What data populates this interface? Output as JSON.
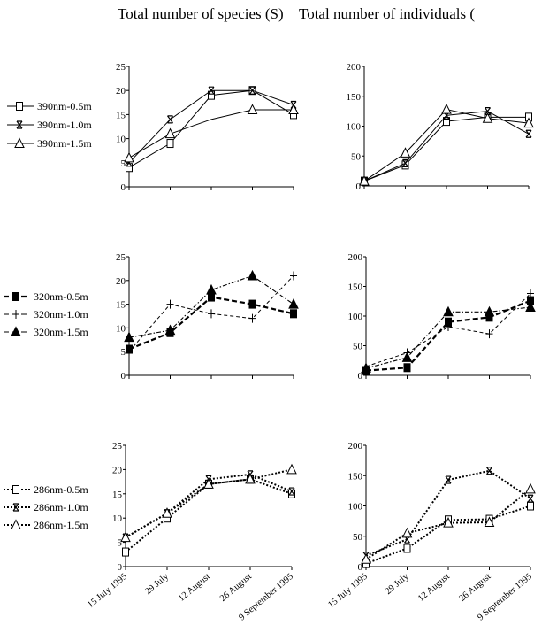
{
  "column_titles": {
    "left": "Total number of species (S)",
    "right": "Total number of individuals ("
  },
  "chart_data": [
    {
      "id": "species-390",
      "type": "line",
      "title": "Total number of species (S)",
      "categories": [
        "15 July 1995",
        "29 July",
        "12 August",
        "26 August",
        "9 September 1995"
      ],
      "ylim": [
        0,
        25
      ],
      "yticks": [
        "0",
        "5",
        "10",
        "15",
        "20",
        "25"
      ],
      "legend": "left",
      "show_xlabels": false,
      "series": [
        {
          "name": "390nm-0.5m",
          "marker": "square",
          "dash": "solid",
          "values": [
            4,
            9,
            19,
            20,
            15
          ]
        },
        {
          "name": "390nm-1.0m",
          "marker": "x",
          "dash": "solid",
          "values": [
            5,
            14,
            20,
            20,
            17
          ]
        },
        {
          "name": "390nm-1.5m",
          "marker": "triangle",
          "dash": "solid",
          "values": [
            6,
            11,
            14,
            16,
            16
          ],
          "skip_marker": [
            2
          ]
        }
      ]
    },
    {
      "id": "individuals-390",
      "type": "line",
      "categories": [
        "15 July 1995",
        "29 July",
        "12 August",
        "26 August",
        "9 September 1995"
      ],
      "ylim": [
        0,
        200
      ],
      "yticks": [
        "0",
        "50",
        "100",
        "150",
        "200"
      ],
      "show_xlabels": false,
      "series": [
        {
          "name": "390nm-0.5m",
          "marker": "square",
          "dash": "solid",
          "values": [
            8,
            35,
            108,
            115,
            115
          ]
        },
        {
          "name": "390nm-1.0m",
          "marker": "x",
          "dash": "solid",
          "values": [
            8,
            38,
            118,
            125,
            87
          ]
        },
        {
          "name": "390nm-1.5m",
          "marker": "triangle",
          "dash": "solid",
          "values": [
            8,
            55,
            128,
            113,
            105
          ]
        }
      ]
    },
    {
      "id": "species-320",
      "type": "line",
      "categories": [
        "15 July 1995",
        "29 July",
        "12 August",
        "26 August",
        "9 September 1995"
      ],
      "ylim": [
        0,
        25
      ],
      "yticks": [
        "0",
        "5",
        "10",
        "15",
        "20",
        "25"
      ],
      "legend": "left",
      "show_xlabels": false,
      "series": [
        {
          "name": "320nm-0.5m",
          "marker": "filled-square",
          "dash": "dash-thick",
          "values": [
            5.5,
            9,
            16.5,
            15,
            13
          ]
        },
        {
          "name": "320nm-1.0m",
          "marker": "plus",
          "dash": "dash-thin",
          "values": [
            5,
            15,
            13,
            12,
            21
          ]
        },
        {
          "name": "320nm-1.5m",
          "marker": "filled-triangle",
          "dash": "dash-dot",
          "values": [
            8,
            9.5,
            18,
            21,
            15
          ]
        }
      ]
    },
    {
      "id": "individuals-320",
      "type": "line",
      "categories": [
        "15 July 1995",
        "29 July",
        "12 August",
        "26 August",
        "9 September 1995"
      ],
      "ylim": [
        0,
        200
      ],
      "yticks": [
        "0",
        "50",
        "100",
        "150",
        "200"
      ],
      "show_xlabels": false,
      "series": [
        {
          "name": "320nm-0.5m",
          "marker": "filled-square",
          "dash": "dash-thick",
          "values": [
            8,
            13,
            90,
            98,
            126
          ]
        },
        {
          "name": "320nm-1.0m",
          "marker": "plus",
          "dash": "dash-thin",
          "values": [
            15,
            38,
            82,
            70,
            138
          ]
        },
        {
          "name": "320nm-1.5m",
          "marker": "filled-triangle",
          "dash": "dash-dot",
          "values": [
            12,
            30,
            107,
            107,
            115
          ]
        }
      ]
    },
    {
      "id": "species-286",
      "type": "line",
      "categories": [
        "15 July 1995",
        "29 July",
        "12 August",
        "26 August",
        "9 September 1995"
      ],
      "ylim": [
        0,
        25
      ],
      "yticks": [
        "0",
        "5",
        "10",
        "15",
        "20",
        "25"
      ],
      "legend": "left",
      "show_xlabels": true,
      "series": [
        {
          "name": "286nm-0.5m",
          "marker": "square",
          "dash": "dot",
          "values": [
            3,
            10,
            17,
            18,
            15
          ]
        },
        {
          "name": "286nm-1.0m",
          "marker": "x",
          "dash": "dot",
          "values": [
            6,
            11,
            18,
            19,
            15.5
          ]
        },
        {
          "name": "286nm-1.5m",
          "marker": "triangle",
          "dash": "dot",
          "values": [
            6,
            11,
            17,
            18,
            20
          ]
        }
      ]
    },
    {
      "id": "individuals-286",
      "type": "line",
      "categories": [
        "15 July 1995",
        "29 July",
        "12 August",
        "26 August",
        "9 September 1995"
      ],
      "ylim": [
        0,
        200
      ],
      "yticks": [
        "0",
        "50",
        "100",
        "150",
        "200"
      ],
      "show_xlabels": true,
      "series": [
        {
          "name": "286nm-0.5m",
          "marker": "square",
          "dash": "dot",
          "values": [
            5,
            30,
            77,
            78,
            100
          ]
        },
        {
          "name": "286nm-1.0m",
          "marker": "x",
          "dash": "dot",
          "values": [
            18,
            45,
            143,
            158,
            112
          ]
        },
        {
          "name": "286nm-1.5m",
          "marker": "triangle",
          "dash": "dot",
          "values": [
            12,
            55,
            72,
            73,
            128
          ]
        }
      ]
    }
  ]
}
